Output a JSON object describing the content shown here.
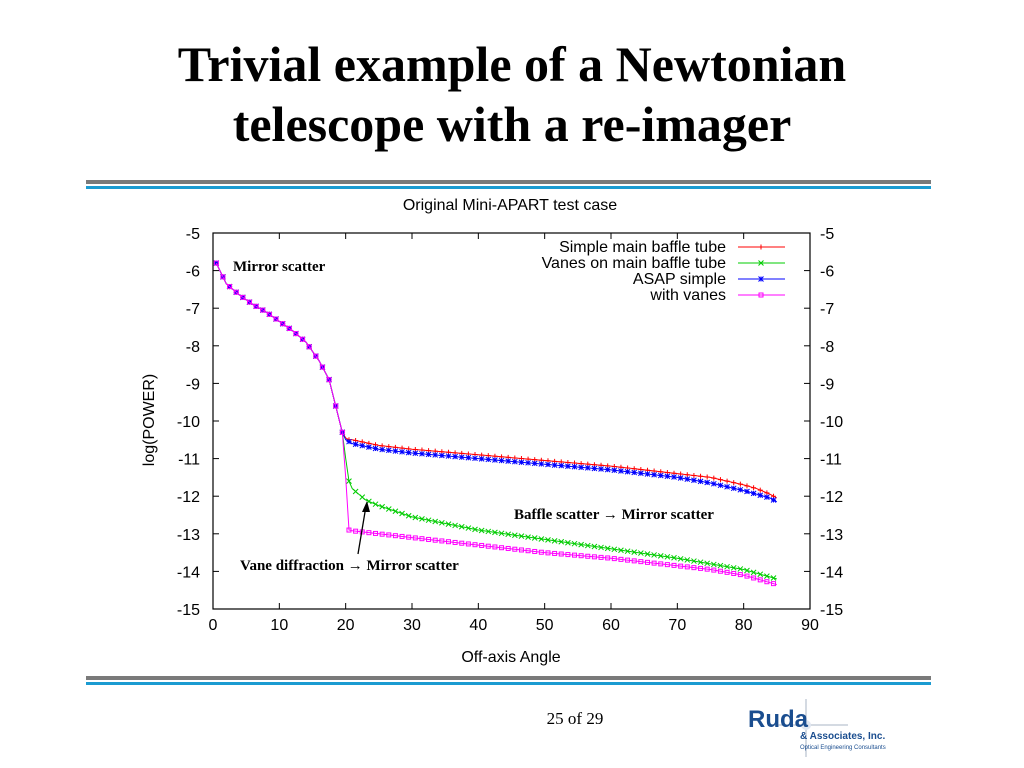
{
  "slide": {
    "title_line1": "Trivial example of a Newtonian",
    "title_line2": "telescope with a re-imager",
    "page_number": "25 of 29",
    "rule_colors": {
      "dark": "#7a7a7a",
      "accent": "#1b9bd1"
    }
  },
  "logo": {
    "name": "Ruda",
    "subname": "& Associates, Inc.",
    "tagline": "Optical Engineering Consultants",
    "color": "#1a4d8f"
  },
  "chart_data": {
    "type": "line",
    "title": "Original Mini-APART test case",
    "xlabel": "Off-axis Angle",
    "ylabel": "log(POWER)",
    "xlim": [
      0,
      90
    ],
    "ylim": [
      -15,
      -5
    ],
    "xticks": [
      0,
      10,
      20,
      30,
      40,
      50,
      60,
      70,
      80,
      90
    ],
    "yticks": [
      -5,
      -6,
      -7,
      -8,
      -9,
      -10,
      -11,
      -12,
      -13,
      -14,
      -15
    ],
    "y2ticks": [
      -5,
      -6,
      -7,
      -8,
      -9,
      -10,
      -11,
      -12,
      -13,
      -14,
      -15
    ],
    "grid": false,
    "legend_position": "top-right",
    "series": [
      {
        "name": "Simple main baffle tube",
        "color": "#ff0000",
        "marker": "plus",
        "x": [
          0.5,
          2,
          4,
          6,
          8,
          10,
          12,
          14,
          16,
          17.5,
          18.5,
          19.5,
          20,
          20.5,
          21,
          25,
          30,
          40,
          50,
          60,
          70,
          75,
          80,
          82,
          84,
          85
        ],
        "values": [
          -5.8,
          -6.35,
          -6.65,
          -6.9,
          -7.1,
          -7.35,
          -7.6,
          -7.9,
          -8.4,
          -8.9,
          -9.6,
          -10.3,
          -10.45,
          -10.5,
          -10.5,
          -10.65,
          -10.75,
          -10.9,
          -11.05,
          -11.2,
          -11.4,
          -11.5,
          -11.7,
          -11.8,
          -11.95,
          -12.05
        ]
      },
      {
        "name": "Vanes on main baffle tube",
        "color": "#00cc00",
        "marker": "x",
        "x": [
          0.5,
          2,
          4,
          6,
          8,
          10,
          12,
          14,
          16,
          17.5,
          18.5,
          19.5,
          20,
          20.5,
          21,
          23,
          25,
          30,
          40,
          50,
          60,
          70,
          75,
          80,
          82,
          84,
          85
        ],
        "values": [
          -5.8,
          -6.35,
          -6.65,
          -6.9,
          -7.1,
          -7.35,
          -7.6,
          -7.9,
          -8.4,
          -8.9,
          -9.6,
          -10.3,
          -11.0,
          -11.6,
          -11.8,
          -12.1,
          -12.25,
          -12.55,
          -12.9,
          -13.15,
          -13.4,
          -13.65,
          -13.8,
          -13.95,
          -14.05,
          -14.15,
          -14.2
        ]
      },
      {
        "name": "ASAP simple",
        "color": "#0000ff",
        "marker": "star",
        "x": [
          0.5,
          2,
          4,
          6,
          8,
          10,
          12,
          14,
          16,
          17.5,
          18.5,
          19.5,
          20,
          20.5,
          21,
          25,
          30,
          40,
          50,
          60,
          70,
          75,
          80,
          82,
          84,
          85
        ],
        "values": [
          -5.8,
          -6.35,
          -6.65,
          -6.9,
          -7.1,
          -7.35,
          -7.6,
          -7.9,
          -8.4,
          -8.9,
          -9.6,
          -10.3,
          -10.5,
          -10.55,
          -10.6,
          -10.75,
          -10.85,
          -11.0,
          -11.15,
          -11.3,
          -11.5,
          -11.65,
          -11.85,
          -11.95,
          -12.05,
          -12.15
        ]
      },
      {
        "name": "with vanes",
        "color": "#ff00ff",
        "marker": "square",
        "x": [
          0.5,
          2,
          4,
          6,
          8,
          10,
          12,
          14,
          16,
          17.5,
          18.5,
          19.5,
          20,
          20.5,
          21,
          25,
          30,
          40,
          50,
          60,
          70,
          75,
          80,
          82,
          84,
          85
        ],
        "values": [
          -5.8,
          -6.35,
          -6.65,
          -6.9,
          -7.1,
          -7.35,
          -7.6,
          -7.9,
          -8.4,
          -8.9,
          -9.6,
          -10.3,
          -11.5,
          -12.9,
          -12.92,
          -13.0,
          -13.1,
          -13.3,
          -13.5,
          -13.65,
          -13.85,
          -13.95,
          -14.1,
          -14.2,
          -14.3,
          -14.35
        ]
      }
    ],
    "annotations": [
      {
        "text": "Mirror scatter"
      },
      {
        "text": "Baffle scatter → Mirror scatter"
      },
      {
        "text": "Vane diffraction → Mirror scatter",
        "arrow_to": [
          23,
          -12.1
        ]
      }
    ]
  }
}
